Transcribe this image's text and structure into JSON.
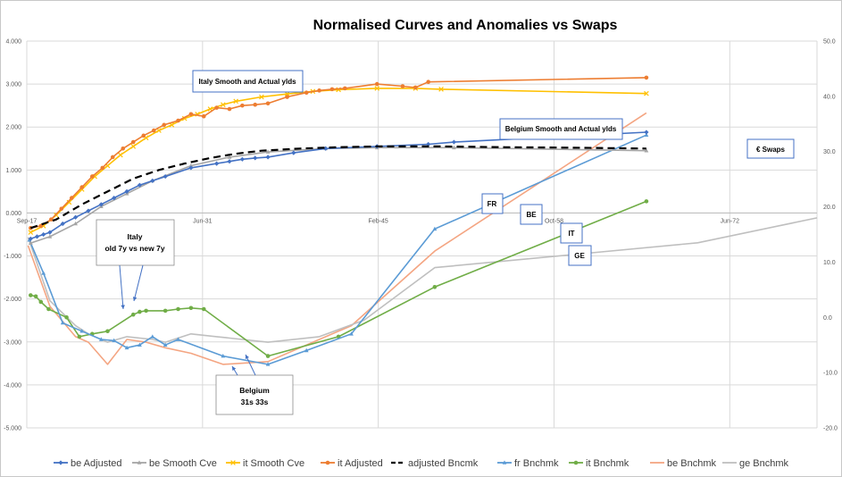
{
  "chart_data": {
    "type": "line",
    "title": "Normalised Curves and Anomalies vs Swaps",
    "x_ticks": [
      "Sep-17",
      "Jun-31",
      "Feb-45",
      "Oct-58",
      "Jun-72"
    ],
    "x_tick_values": [
      2017.7,
      2031.4,
      2045.1,
      2058.8,
      2072.5
    ],
    "xlim": [
      2017.7,
      2079.3
    ],
    "y_left": {
      "ylim": [
        -5,
        4
      ],
      "ticks": [
        "4.000",
        "3.000",
        "2.000",
        "1.000",
        "0.000",
        "-1.000",
        "-2.000",
        "-3.000",
        "-4.000",
        "-5.000"
      ]
    },
    "y_right": {
      "ylim": [
        -20,
        50
      ],
      "ticks": [
        "50.0",
        "40.0",
        "30.0",
        "20.0",
        "10.0",
        "0.0",
        "-10.0",
        "-20.0"
      ]
    },
    "grid": true,
    "legend_position": "bottom",
    "series": [
      {
        "name": "be Adjusted",
        "axis": "left",
        "color": "#4472c4",
        "marker": "diamond",
        "x": [
          2018.0,
          2018.5,
          2019.0,
          2019.5,
          2020.5,
          2021.5,
          2022.5,
          2023.5,
          2024.5,
          2025.5,
          2026.5,
          2027.5,
          2028.5,
          2030.5,
          2032.5,
          2033.5,
          2034.5,
          2035.5,
          2036.5,
          2038.5,
          2041.0,
          2045.0,
          2049.0,
          2051.0,
          2066.0
        ],
        "y": [
          -0.6,
          -0.55,
          -0.5,
          -0.45,
          -0.25,
          -0.1,
          0.05,
          0.2,
          0.35,
          0.5,
          0.65,
          0.75,
          0.85,
          1.05,
          1.15,
          1.2,
          1.25,
          1.28,
          1.3,
          1.4,
          1.5,
          1.55,
          1.6,
          1.65,
          1.88
        ]
      },
      {
        "name": "be Smooth Cve",
        "axis": "left",
        "color": "#a5a5a5",
        "marker": "triangle",
        "x": [
          2018.0,
          2019.5,
          2021.5,
          2023.5,
          2025.5,
          2027.5,
          2030.5,
          2033.5,
          2036.5,
          2041.0,
          2045.0,
          2051.0,
          2066.0
        ],
        "y": [
          -0.7,
          -0.55,
          -0.25,
          0.15,
          0.45,
          0.75,
          1.1,
          1.3,
          1.42,
          1.5,
          1.52,
          1.52,
          1.45
        ]
      },
      {
        "name": "it Smooth Cve",
        "axis": "left",
        "color": "#ffc000",
        "marker": "x",
        "x": [
          2018.0,
          2019.0,
          2020.0,
          2021.0,
          2022.0,
          2023.0,
          2024.0,
          2025.0,
          2026.0,
          2027.0,
          2028.0,
          2029.0,
          2030.0,
          2031.0,
          2032.0,
          2033.0,
          2034.0,
          2036.0,
          2038.0,
          2040.0,
          2042.0,
          2045.0,
          2048.0,
          2050.0,
          2066.0
        ],
        "y": [
          -0.45,
          -0.3,
          -0.05,
          0.25,
          0.55,
          0.85,
          1.1,
          1.35,
          1.55,
          1.75,
          1.92,
          2.05,
          2.2,
          2.3,
          2.42,
          2.52,
          2.6,
          2.7,
          2.77,
          2.83,
          2.87,
          2.9,
          2.9,
          2.88,
          2.78
        ]
      },
      {
        "name": "it Adjusted",
        "axis": "left",
        "color": "#ed7d31",
        "marker": "circle",
        "x": [
          2018.0,
          2018.8,
          2019.6,
          2020.4,
          2021.2,
          2022.0,
          2022.8,
          2023.6,
          2024.4,
          2025.2,
          2026.0,
          2026.8,
          2027.6,
          2028.4,
          2029.5,
          2030.5,
          2031.5,
          2032.5,
          2033.5,
          2034.5,
          2035.5,
          2036.5,
          2038.0,
          2039.5,
          2040.5,
          2041.5,
          2042.5,
          2045.0,
          2047.0,
          2048.0,
          2049.0,
          2066.0
        ],
        "y": [
          -0.35,
          -0.3,
          -0.15,
          0.1,
          0.35,
          0.6,
          0.85,
          1.05,
          1.3,
          1.5,
          1.65,
          1.8,
          1.92,
          2.05,
          2.15,
          2.3,
          2.25,
          2.45,
          2.42,
          2.5,
          2.52,
          2.55,
          2.7,
          2.8,
          2.85,
          2.88,
          2.9,
          3.0,
          2.95,
          2.92,
          3.05,
          3.15
        ]
      },
      {
        "name": "adjusted Bncmk",
        "axis": "left",
        "color": "#000000",
        "marker": "none",
        "dash": true,
        "x": [
          2018.0,
          2020.0,
          2022.0,
          2024.0,
          2026.0,
          2028.0,
          2030.0,
          2032.0,
          2034.0,
          2036.0,
          2039.0,
          2042.0,
          2045.0,
          2050.0,
          2055.0,
          2060.0,
          2066.0
        ],
        "y": [
          -0.35,
          -0.15,
          0.2,
          0.5,
          0.8,
          1.0,
          1.15,
          1.28,
          1.38,
          1.45,
          1.5,
          1.53,
          1.55,
          1.55,
          1.53,
          1.52,
          1.5
        ]
      },
      {
        "name": "fr  Bnchmk",
        "axis": "right",
        "color": "#5b9bd5",
        "marker": "triangle",
        "x": [
          2017.9,
          2019.0,
          2020.5,
          2022.0,
          2023.5,
          2024.5,
          2025.5,
          2026.5,
          2027.5,
          2028.5,
          2029.5,
          2033.0,
          2036.5,
          2039.5,
          2043.0,
          2049.5,
          2066.0
        ],
        "y": [
          14.0,
          8.0,
          -1.0,
          -2.5,
          -4.0,
          -4.2,
          -5.5,
          -5.0,
          -3.5,
          -5.0,
          -4.0,
          -7.0,
          -8.5,
          -6.0,
          -3.0,
          16.0,
          33.0
        ]
      },
      {
        "name": "it  Bnchmk",
        "axis": "right",
        "color": "#70ad47",
        "marker": "circle",
        "x": [
          2018.0,
          2018.4,
          2018.8,
          2019.4,
          2020.8,
          2021.8,
          2022.8,
          2024.0,
          2026.0,
          2026.5,
          2027.0,
          2028.5,
          2029.5,
          2030.5,
          2031.5,
          2036.5,
          2042.0,
          2049.5,
          2066.0
        ],
        "y": [
          4.0,
          3.8,
          2.8,
          1.5,
          0.0,
          -3.5,
          -3.0,
          -2.5,
          0.5,
          1.0,
          1.2,
          1.2,
          1.5,
          1.7,
          1.5,
          -7.0,
          -3.5,
          5.5,
          21.0
        ]
      },
      {
        "name": "be  Bnchmk",
        "axis": "right",
        "color": "#f4a582",
        "marker": "none",
        "x": [
          2017.8,
          2019.5,
          2021.5,
          2022.5,
          2024.0,
          2025.5,
          2027.0,
          2028.5,
          2030.5,
          2033.0,
          2036.5,
          2040.0,
          2043.0,
          2049.5,
          2066.0
        ],
        "y": [
          13.0,
          2.0,
          -3.5,
          -4.5,
          -8.5,
          -4.0,
          -4.5,
          -5.5,
          -6.5,
          -8.5,
          -8.0,
          -4.5,
          -1.5,
          12.0,
          37.0
        ]
      },
      {
        "name": "ge  Bnchmk",
        "axis": "right",
        "color": "#bfbfbf",
        "marker": "none",
        "x": [
          2017.8,
          2019.5,
          2021.5,
          2022.5,
          2024.0,
          2025.5,
          2027.5,
          2028.5,
          2030.5,
          2032.5,
          2036.5,
          2040.5,
          2044.0,
          2049.5,
          2070.0,
          2079.3
        ],
        "y": [
          14.5,
          3.0,
          -1.5,
          -3.0,
          -4.5,
          -3.5,
          -4.0,
          -4.5,
          -3.0,
          -3.5,
          -4.5,
          -3.5,
          -0.5,
          9.0,
          13.5,
          18.0
        ]
      }
    ],
    "annotations": [
      {
        "id": "italy-smooth",
        "text": "Italy Smooth and Actual ylds"
      },
      {
        "id": "belgium-smooth",
        "text": "Belgium Smooth and Actual ylds"
      },
      {
        "id": "swaps",
        "text": "€ Swaps"
      },
      {
        "id": "fr",
        "text": "FR"
      },
      {
        "id": "be",
        "text": "BE"
      },
      {
        "id": "it",
        "text": "IT"
      },
      {
        "id": "ge",
        "text": "GE"
      },
      {
        "id": "italy-old-new",
        "text": [
          "Italy",
          "old 7y vs new 7y"
        ]
      },
      {
        "id": "belgium-31s",
        "text": [
          "Belgium",
          "31s 33s"
        ]
      }
    ]
  }
}
